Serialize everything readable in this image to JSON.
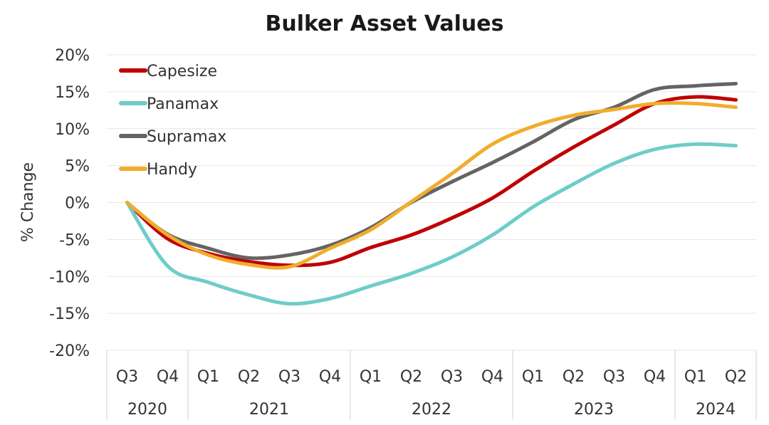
{
  "chart_data": {
    "type": "line",
    "title": "Bulker Asset Values",
    "ylabel": "% Change",
    "xlabel": "",
    "ylim": [
      -20,
      20
    ],
    "yticks": [
      20,
      15,
      10,
      5,
      0,
      -5,
      -10,
      -15,
      -20
    ],
    "ytick_labels": [
      "20%",
      "15%",
      "10%",
      "5%",
      "0%",
      "-5%",
      "-10%",
      "-15%",
      "-20%"
    ],
    "categories": [
      "Q3",
      "Q4",
      "Q1",
      "Q2",
      "Q3",
      "Q4",
      "Q1",
      "Q2",
      "Q3",
      "Q4",
      "Q1",
      "Q2",
      "Q3",
      "Q4",
      "Q1",
      "Q2"
    ],
    "year_groups": [
      {
        "label": "2020",
        "start": 0,
        "end": 1
      },
      {
        "label": "2021",
        "start": 2,
        "end": 5
      },
      {
        "label": "2022",
        "start": 6,
        "end": 9
      },
      {
        "label": "2023",
        "start": 10,
        "end": 13
      },
      {
        "label": "2024",
        "start": 14,
        "end": 15
      }
    ],
    "grid": true,
    "legend_position": "top-left",
    "series": [
      {
        "name": "Capesize",
        "color": "#c00000",
        "values": [
          0,
          -4.9,
          -6.9,
          -8.0,
          -8.5,
          -8.1,
          -6.1,
          -4.4,
          -2.1,
          0.6,
          4.2,
          7.5,
          10.5,
          13.4,
          14.3,
          13.9
        ]
      },
      {
        "name": "Panamax",
        "color": "#6dcdc8",
        "values": [
          0,
          -8.6,
          -10.8,
          -12.5,
          -13.7,
          -13.0,
          -11.3,
          -9.6,
          -7.4,
          -4.4,
          -0.6,
          2.5,
          5.3,
          7.2,
          7.9,
          7.7
        ]
      },
      {
        "name": "Supramax",
        "color": "#646464",
        "values": [
          0,
          -4.3,
          -6.2,
          -7.5,
          -7.1,
          -5.8,
          -3.4,
          0.0,
          2.8,
          5.4,
          8.2,
          11.2,
          12.9,
          15.3,
          15.8,
          16.1
        ]
      },
      {
        "name": "Handy",
        "color": "#f0ad2d",
        "values": [
          0,
          -4.4,
          -7.1,
          -8.4,
          -8.7,
          -6.2,
          -3.7,
          0.1,
          3.9,
          7.9,
          10.3,
          11.8,
          12.6,
          13.4,
          13.4,
          12.9
        ]
      }
    ]
  }
}
